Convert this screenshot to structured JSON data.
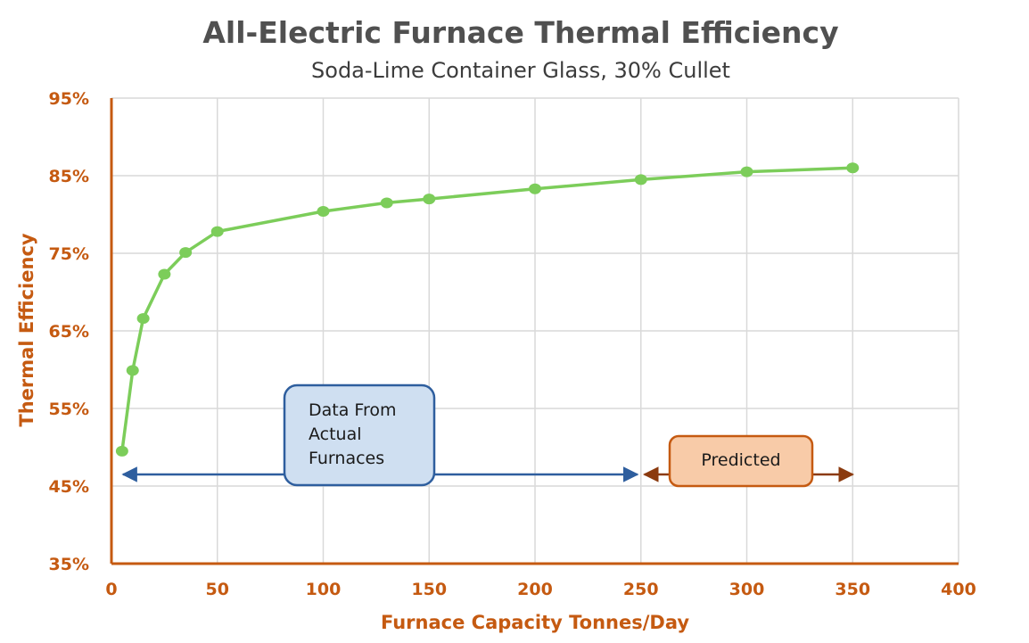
{
  "chart_data": {
    "type": "line",
    "title": "All-Electric Furnace Thermal Efficiency",
    "subtitle": "Soda-Lime Container Glass, 30% Cullet",
    "xlabel": "Furnace Capacity Tonnes/Day",
    "ylabel": "Thermal Efficiency",
    "xlim": [
      0,
      400
    ],
    "ylim": [
      35,
      95
    ],
    "x_ticks": [
      "0",
      "50",
      "100",
      "150",
      "200",
      "250",
      "300",
      "350",
      "400"
    ],
    "y_ticks": [
      "35%",
      "45%",
      "55%",
      "65%",
      "75%",
      "85%",
      "95%"
    ],
    "grid": true,
    "series": [
      {
        "x": [
          5,
          10,
          15,
          25,
          35,
          50,
          100,
          130,
          150,
          200,
          250,
          300,
          350
        ],
        "y": [
          49.5,
          59.9,
          66.6,
          72.3,
          75.1,
          77.8,
          80.4,
          81.5,
          82.0,
          83.3,
          84.5,
          85.5,
          86.0
        ],
        "color": "#7ccd5a"
      }
    ],
    "annotations": [
      {
        "text": "Data From\nActual\nFurnaces",
        "arrow_x": [
          3,
          250
        ],
        "arrow_y": 46.5,
        "arrow_color": "#2e5e9e",
        "box_fill": "#cfdff1",
        "box_border": "#2e5e9e"
      },
      {
        "text": "Predicted",
        "arrow_x": [
          250,
          350
        ],
        "arrow_y": 46.5,
        "arrow_color": "#8b3a0e",
        "box_fill": "#f8cba8",
        "box_border": "#c55a11"
      }
    ]
  }
}
